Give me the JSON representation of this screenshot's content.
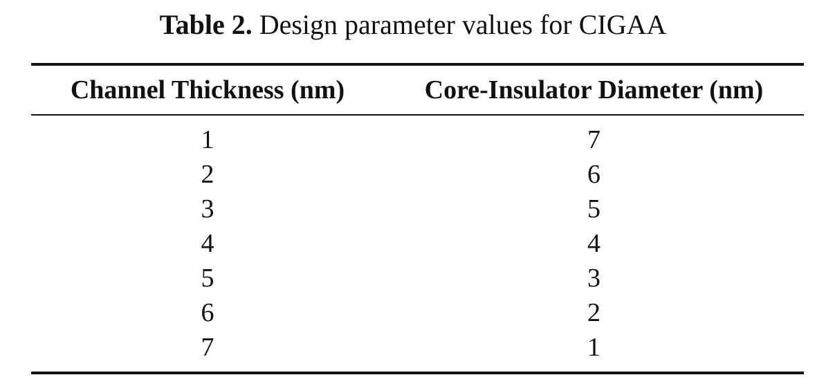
{
  "caption": {
    "label": "Table 2.",
    "text": "Design parameter values for CIGAA"
  },
  "table": {
    "headers": [
      "Channel Thickness (nm)",
      "Core-Insulator Diameter (nm)"
    ],
    "rows": [
      [
        "1",
        "7"
      ],
      [
        "2",
        "6"
      ],
      [
        "3",
        "5"
      ],
      [
        "4",
        "4"
      ],
      [
        "5",
        "3"
      ],
      [
        "6",
        "2"
      ],
      [
        "7",
        "1"
      ]
    ]
  }
}
